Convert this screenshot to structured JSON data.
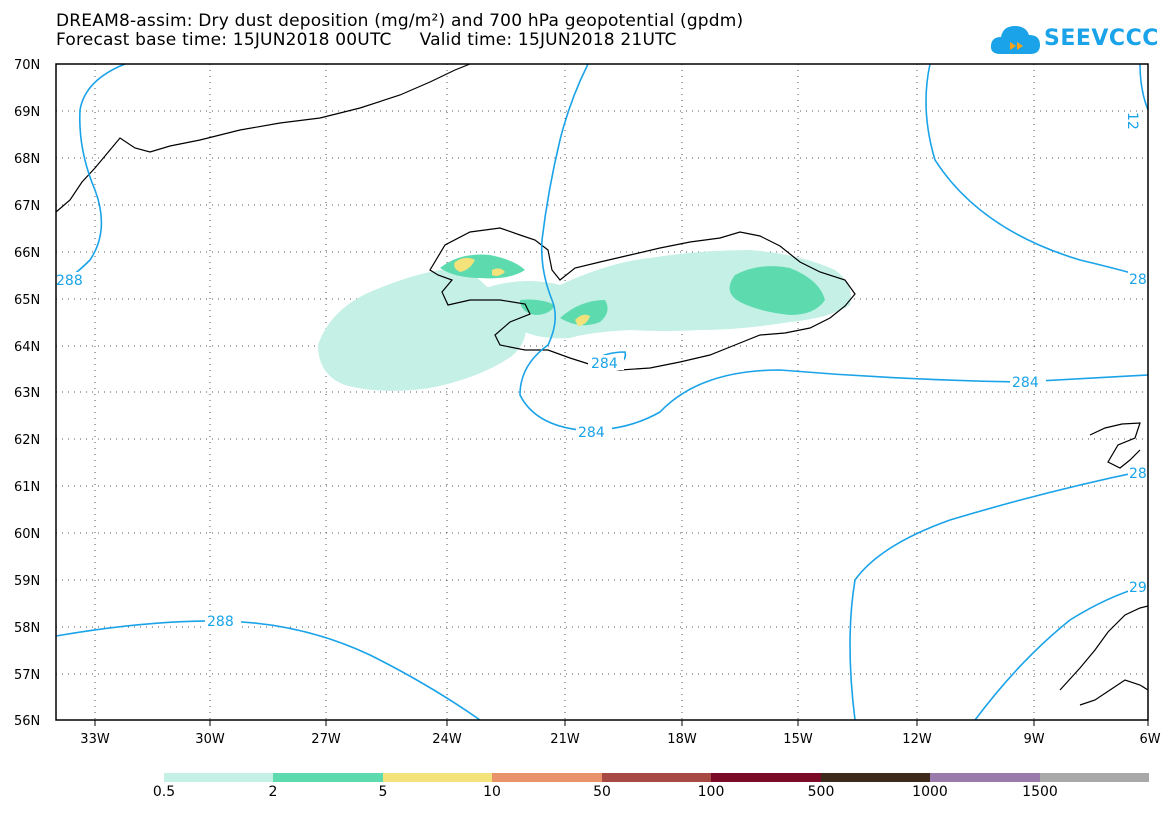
{
  "title_line1": "DREAM8-assim: Dry dust deposition (mg/m²) and 700 hPa geopotential (gpdm)",
  "title_line2": "Forecast base time: 15JUN2018 00UTC     Valid time: 15JUN2018 21UTC",
  "logo_text": "SEEVCCC",
  "lat_labels": [
    "70N",
    "69N",
    "68N",
    "67N",
    "66N",
    "65N",
    "64N",
    "63N",
    "62N",
    "61N",
    "60N",
    "59N",
    "58N",
    "57N",
    "56N"
  ],
  "lon_labels": [
    "33W",
    "30W",
    "27W",
    "24W",
    "21W",
    "18W",
    "15W",
    "12W",
    "9W",
    "6W"
  ],
  "contour_labels": {
    "c288a": "288",
    "c288b": "288",
    "c284a": "284",
    "c284b": "284",
    "c284c": "284",
    "c28a": "28",
    "c28b": "28",
    "c28c": "28",
    "c29": "29",
    "c12": "12"
  },
  "legend": {
    "labels": [
      "0.5",
      "2",
      "5",
      "10",
      "50",
      "100",
      "500",
      "1000",
      "1500"
    ],
    "colors": [
      "#c4f0e6",
      "#5ddbae",
      "#f4e27a",
      "#e8936a",
      "#a84a44",
      "#7a0a26",
      "#3d2a1a",
      "#9a7aaa",
      "#a8a8a8"
    ]
  },
  "colors": {
    "contour": "#1aa3e8",
    "dust_low": "#c4f0e6",
    "dust_mid": "#5ddbae",
    "dust_high": "#f4e27a"
  }
}
